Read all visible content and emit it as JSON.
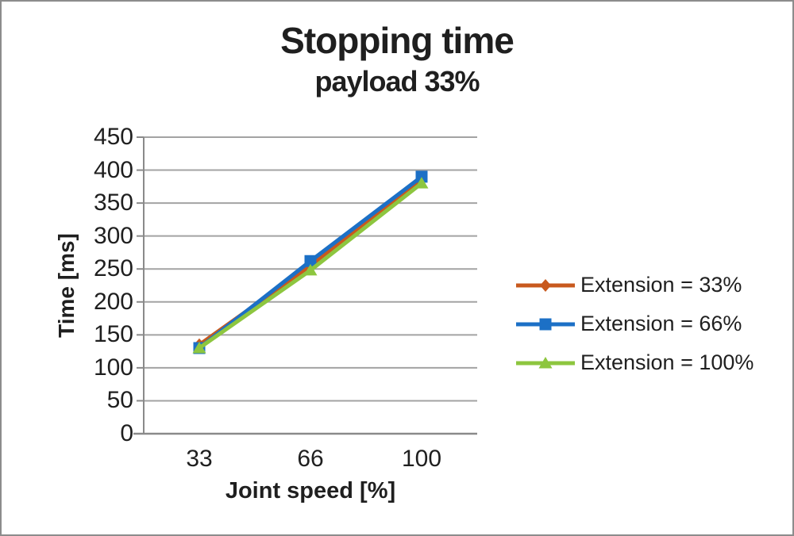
{
  "frame": {
    "background": "#FFFFFF",
    "border_color": "#8C8C8C"
  },
  "chart_data": {
    "type": "line",
    "title": "Stopping time",
    "subtitle": "payload 33%",
    "xlabel": "Joint speed [%]",
    "ylabel": "Time [ms]",
    "categories": [
      "33",
      "66",
      "100"
    ],
    "series": [
      {
        "name": "Extension = 33%",
        "marker": "diamond",
        "color": "#C8591E",
        "values": [
          135,
          255,
          385
        ]
      },
      {
        "name": "Extension = 66%",
        "marker": "square",
        "color": "#1C70C6",
        "values": [
          130,
          262,
          390
        ]
      },
      {
        "name": "Extension = 100%",
        "marker": "triangle",
        "color": "#8DC63F",
        "values": [
          130,
          248,
          380
        ]
      }
    ],
    "ylim": [
      0,
      450
    ],
    "y_ticks": [
      0,
      50,
      100,
      150,
      200,
      250,
      300,
      350,
      400,
      450
    ],
    "grid": true,
    "legend_position": "right",
    "styles": {
      "gridline_color": "#A3A3A3",
      "axis_color": "#8A8A8A",
      "text_color": "#1F1F1F",
      "line_width": 5
    }
  }
}
